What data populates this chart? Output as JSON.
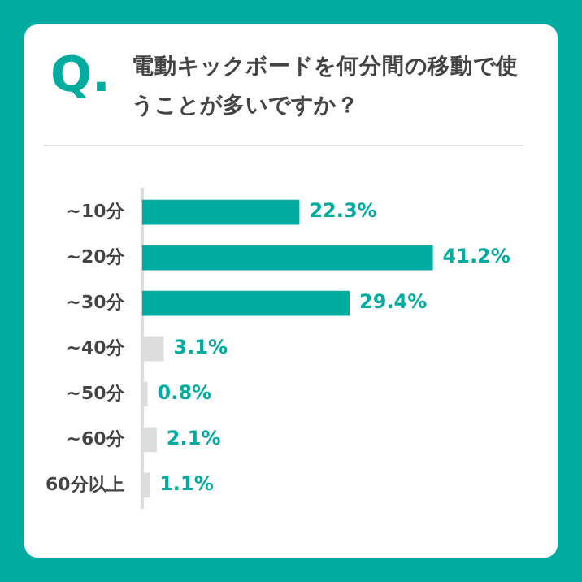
{
  "chart_data": {
    "type": "bar",
    "orientation": "horizontal",
    "title": "電動キックボードを何分間の移動で使うことが多いですか？",
    "annotations": [
      "Q."
    ],
    "categories": [
      "~10分",
      "~20分",
      "~30分",
      "~40分",
      "~50分",
      "~60分",
      "60分以上"
    ],
    "values": [
      22.3,
      41.2,
      29.4,
      3.1,
      0.8,
      2.1,
      1.1
    ],
    "colors": [
      "#00aca0",
      "#00aca0",
      "#00aca0",
      "#dddddd",
      "#dddddd",
      "#dddddd",
      "#dddddd"
    ],
    "value_labels": [
      "22.3%",
      "41.2%",
      "29.4%",
      "3.1%",
      "0.8%",
      "2.1%",
      "1.1%"
    ],
    "grid": false,
    "legend": false
  }
}
